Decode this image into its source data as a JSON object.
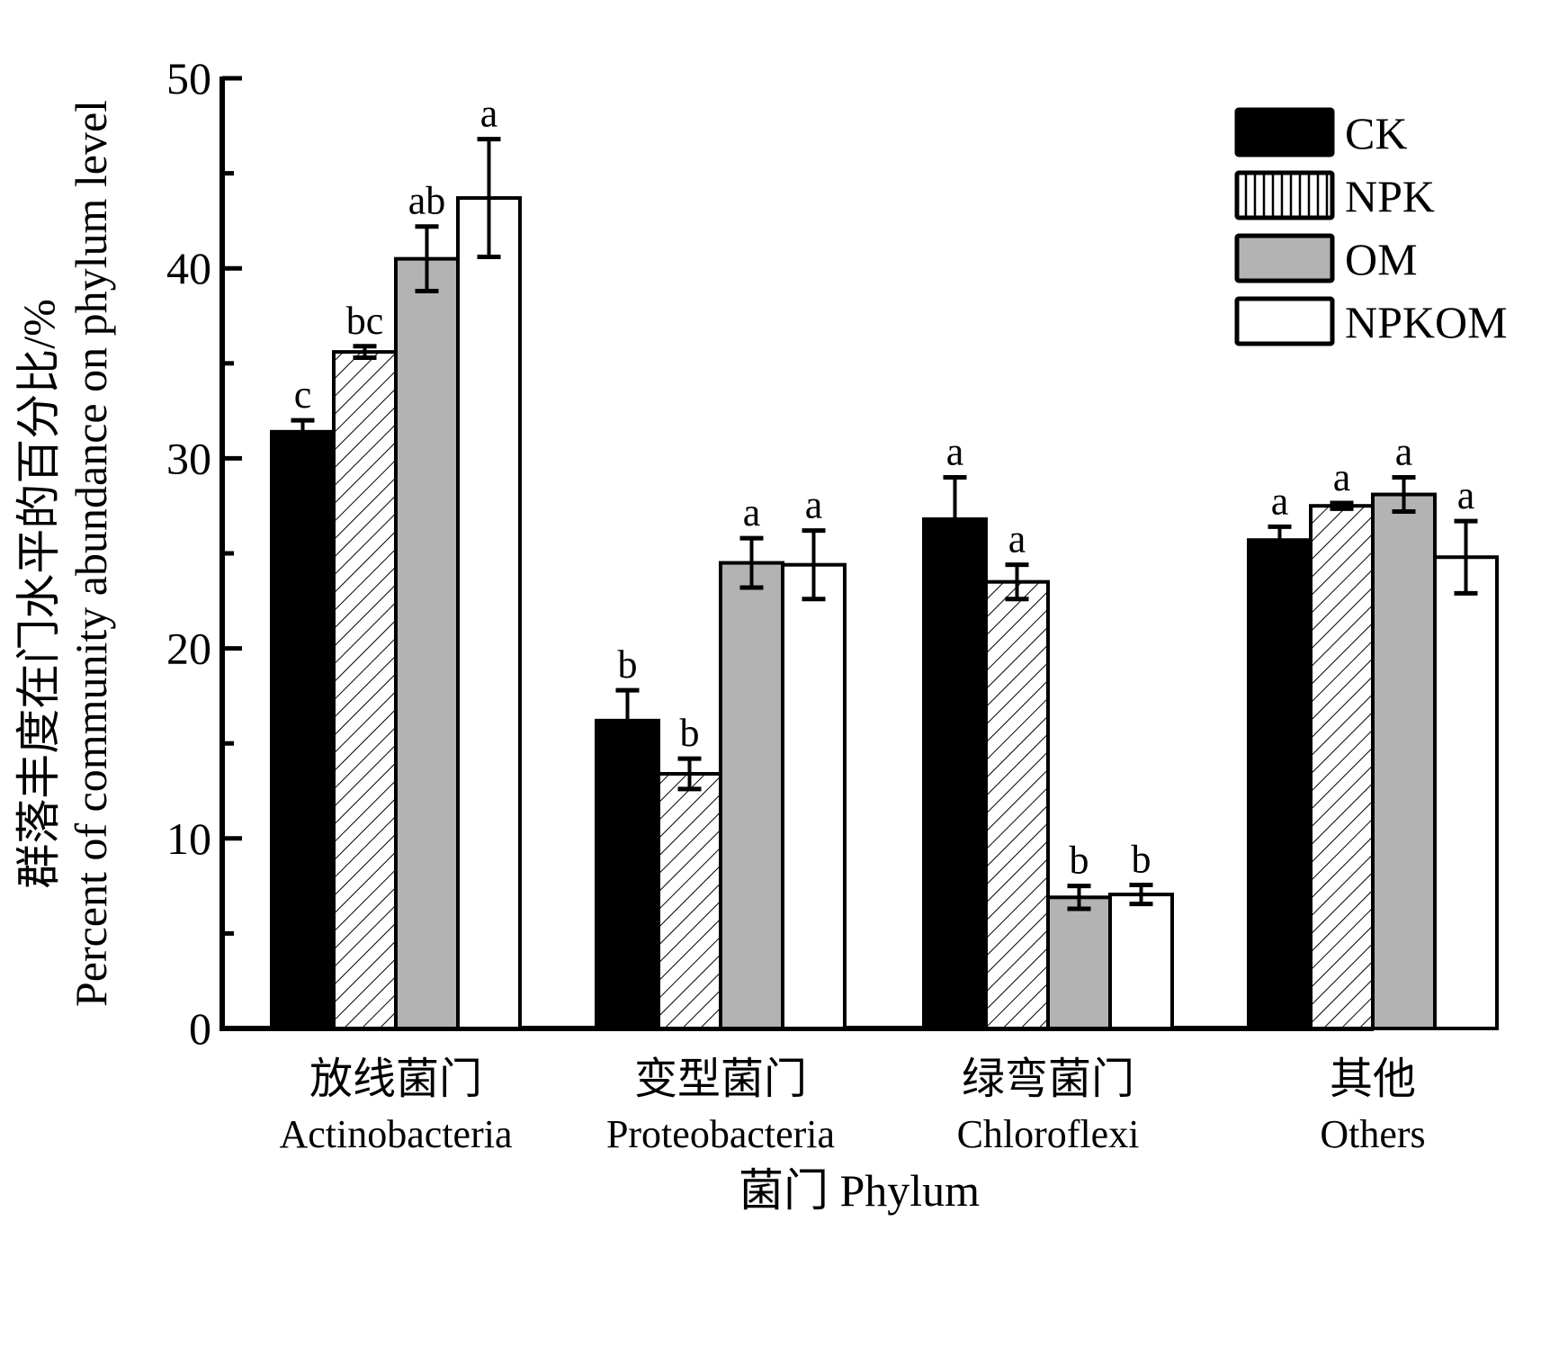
{
  "chart_data": {
    "type": "bar",
    "title": "",
    "xlabel": "菌门 Phylum",
    "ylabel_cn": "群落丰度在门水平的百分比/%",
    "ylabel_en": "Percent of community abundance on phylum level",
    "ylim": [
      0,
      50
    ],
    "yticks": [
      0,
      10,
      20,
      30,
      40,
      50
    ],
    "yticks_minor": [
      5,
      15,
      25,
      35,
      45
    ],
    "grid": false,
    "legend_position": "top-right",
    "categories": [
      {
        "cn": "放线菌门",
        "en": "Actinobacteria"
      },
      {
        "cn": "变型菌门",
        "en": "Proteobacteria"
      },
      {
        "cn": "绿弯菌门",
        "en": "Chloroflexi"
      },
      {
        "cn": "其他",
        "en": "Others"
      }
    ],
    "series": [
      {
        "name": "CK",
        "fill": "#000000",
        "pattern": "solid",
        "values": [
          31.4,
          16.2,
          26.8,
          25.7
        ],
        "errors": [
          0.6,
          1.6,
          2.2,
          0.7
        ],
        "letters": [
          "c",
          "b",
          "a",
          "a"
        ]
      },
      {
        "name": "NPK",
        "fill": "#ffffff",
        "pattern": "hatch",
        "values": [
          35.6,
          13.4,
          23.5,
          27.5
        ],
        "errors": [
          0.3,
          0.8,
          0.9,
          0.15
        ],
        "letters": [
          "bc",
          "b",
          "a",
          "a"
        ]
      },
      {
        "name": "OM",
        "fill": "#b3b3b3",
        "pattern": "solid",
        "values": [
          40.5,
          24.5,
          6.9,
          28.1
        ],
        "errors": [
          1.7,
          1.3,
          0.6,
          0.9
        ],
        "letters": [
          "ab",
          "a",
          "b",
          "a"
        ]
      },
      {
        "name": "NPKOM",
        "fill": "#ffffff",
        "pattern": "solid",
        "values": [
          43.7,
          24.4,
          7.05,
          24.8
        ],
        "errors": [
          3.1,
          1.8,
          0.5,
          1.9
        ],
        "letters": [
          "a",
          "a",
          "b",
          "a"
        ]
      }
    ]
  }
}
